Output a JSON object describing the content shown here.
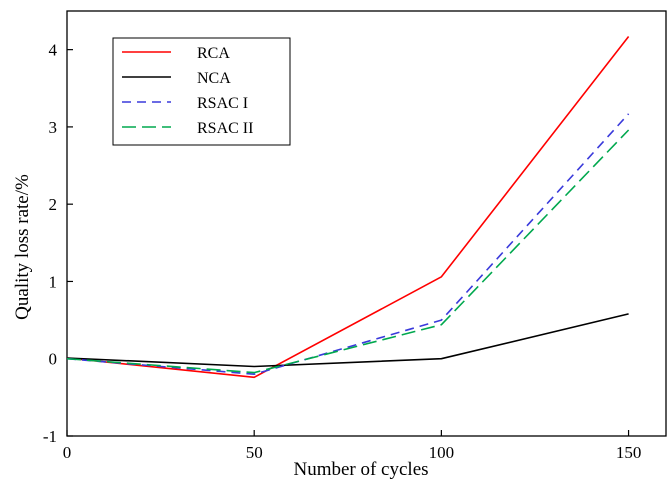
{
  "chart_data": {
    "type": "line",
    "title": "",
    "xlabel": "Number of cycles",
    "ylabel": "Quality loss rate/%",
    "x": [
      0,
      50,
      100,
      150
    ],
    "xlim": [
      0,
      160
    ],
    "ylim": [
      -1,
      4.5
    ],
    "xticks": [
      0,
      50,
      100,
      150
    ],
    "xtick_labels": [
      "0",
      "50",
      "100",
      "150"
    ],
    "yticks": [
      -1,
      0,
      1,
      2,
      3,
      4
    ],
    "ytick_labels": [
      "-1",
      "0",
      "1",
      "2",
      "3",
      "4"
    ],
    "grid": false,
    "legend_position": "top-left",
    "series": [
      {
        "name": "RCA",
        "values": [
          0.01,
          -0.24,
          1.06,
          4.17
        ],
        "color": "#ff0000",
        "dash": "solid"
      },
      {
        "name": "NCA",
        "values": [
          0.01,
          -0.1,
          0.0,
          0.58
        ],
        "color": "#000000",
        "dash": "solid"
      },
      {
        "name": "RSAC I",
        "values": [
          0.0,
          -0.2,
          0.5,
          3.17
        ],
        "color": "#3a3adb",
        "dash": "dashed"
      },
      {
        "name": "RSAC II",
        "values": [
          0.0,
          -0.18,
          0.44,
          2.96
        ],
        "color": "#00a84e",
        "dash": "longdash"
      }
    ]
  }
}
